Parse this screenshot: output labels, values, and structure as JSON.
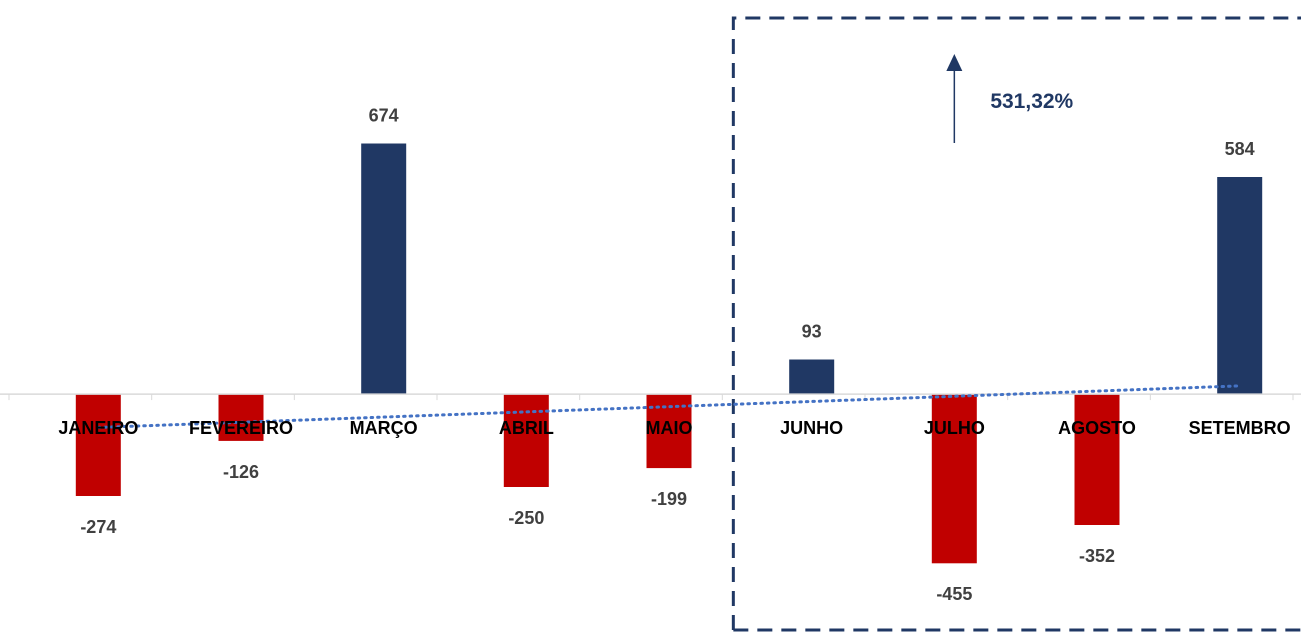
{
  "chart_data": {
    "type": "bar",
    "categories": [
      "JANEIRO",
      "FEVEREIRO",
      "MARÇO",
      "ABRIL",
      "MAIO",
      "JUNHO",
      "JULHO",
      "AGOSTO",
      "SETEMBRO"
    ],
    "values": [
      -274,
      -126,
      674,
      -250,
      -199,
      93,
      -455,
      -352,
      584
    ],
    "data_labels": [
      "-274",
      "-126",
      "674",
      "-250",
      "-199",
      "93",
      "-455",
      "-352",
      "584"
    ],
    "ylim": [
      -640,
      1060
    ],
    "positive_color": "#203864",
    "negative_color": "#C00000",
    "trendline": {
      "style": "dotted",
      "color": "#4472C4"
    },
    "highlight": {
      "from_category": "JUNHO",
      "to_category": "SETEMBRO",
      "style": "dashed",
      "color": "#203864",
      "arrow": "up",
      "annotation": "531,32%"
    },
    "grid": false,
    "legend": "none"
  }
}
